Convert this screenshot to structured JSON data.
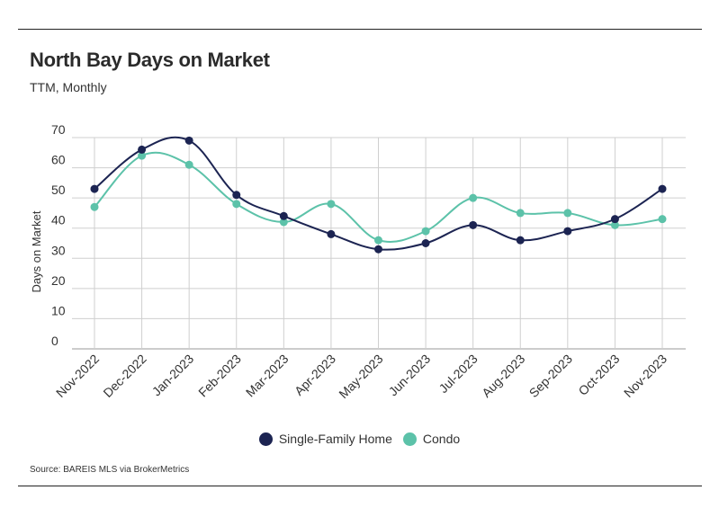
{
  "title": "North Bay Days on Market",
  "subtitle": "TTM, Monthly",
  "source": "Source:  BAREIS MLS via BrokerMetrics",
  "chart_data": {
    "type": "line",
    "title": "North Bay Days on Market",
    "subtitle": "TTM, Monthly",
    "ylabel": "Days on Market",
    "xlabel": "",
    "ylim": [
      0,
      70
    ],
    "yticks": [
      0,
      10,
      20,
      30,
      40,
      50,
      60,
      70
    ],
    "grid": true,
    "legend": "bottom-center",
    "categories": [
      "Nov-2022",
      "Dec-2022",
      "Jan-2023",
      "Feb-2023",
      "Mar-2023",
      "Apr-2023",
      "May-2023",
      "Jun-2023",
      "Jul-2023",
      "Aug-2023",
      "Sep-2023",
      "Oct-2023",
      "Nov-2023"
    ],
    "series": [
      {
        "name": "Single-Family Home",
        "color": "#1c2452",
        "values": [
          53,
          66,
          69,
          51,
          44,
          38,
          33,
          35,
          41,
          36,
          39,
          43,
          53
        ]
      },
      {
        "name": "Condo",
        "color": "#5cc2a9",
        "values": [
          47,
          64,
          61,
          48,
          42,
          48,
          36,
          39,
          50,
          45,
          45,
          41,
          43
        ]
      }
    ]
  }
}
